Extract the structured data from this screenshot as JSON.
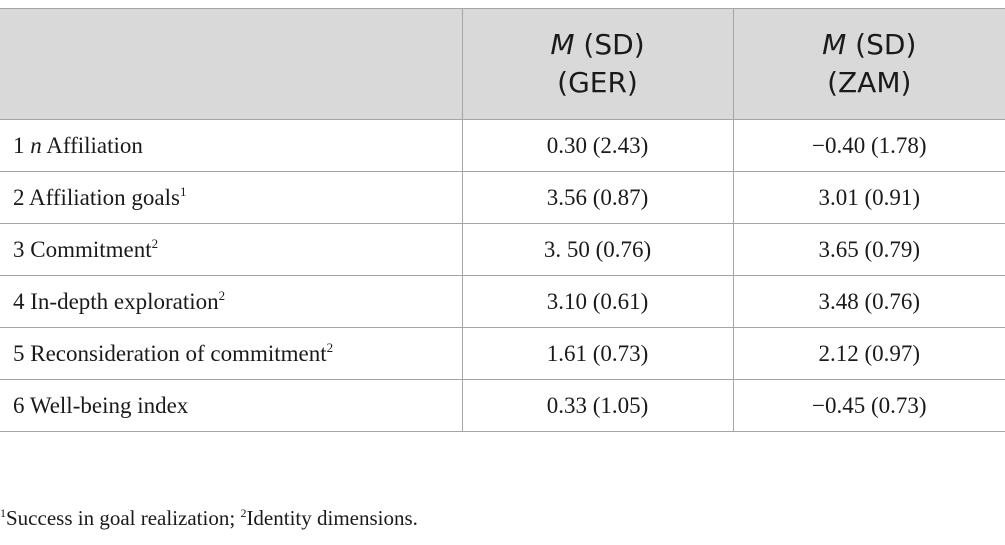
{
  "table": {
    "header": {
      "col1": "",
      "col2": {
        "m": "M",
        "line1_rest": " (SD)",
        "line2": "(GER)"
      },
      "col3": {
        "m": "M",
        "line1_rest": " (SD)",
        "line2": "(ZAM)"
      }
    },
    "rows": [
      {
        "num": "1 ",
        "italic_prefix": "n",
        "label": " Affiliation",
        "sup": "",
        "ger": "0.30 (2.43)",
        "zam": "−0.40 (1.78)"
      },
      {
        "num": "2 ",
        "italic_prefix": "",
        "label": "Affiliation goals",
        "sup": "1",
        "ger": "3.56 (0.87)",
        "zam": "3.01 (0.91)"
      },
      {
        "num": "3 ",
        "italic_prefix": "",
        "label": "Commitment",
        "sup": "2",
        "ger": "3. 50 (0.76)",
        "zam": "3.65 (0.79)"
      },
      {
        "num": "4 ",
        "italic_prefix": "",
        "label": "In-depth exploration",
        "sup": "2",
        "ger": "3.10 (0.61)",
        "zam": "3.48 (0.76)"
      },
      {
        "num": "5 ",
        "italic_prefix": "",
        "label": "Reconsideration of commitment",
        "sup": "2",
        "ger": "1.61 (0.73)",
        "zam": "2.12 (0.97)"
      },
      {
        "num": "6 ",
        "italic_prefix": "",
        "label": "Well-being index",
        "sup": "",
        "ger": "0.33 (1.05)",
        "zam": "−0.45 (0.73)"
      }
    ]
  },
  "footnote": {
    "sup1": "1",
    "text1": "Success in goal realization; ",
    "sup2": "2",
    "text2": "Identity dimensions."
  },
  "colors": {
    "header_bg": "#d9d9d9",
    "border": "#a6a6a6",
    "text": "#1a1a1a"
  }
}
